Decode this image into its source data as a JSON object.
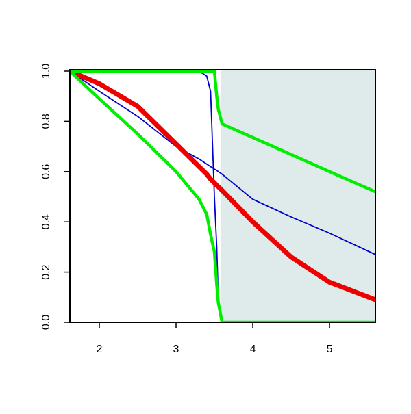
{
  "chart_data": {
    "type": "line",
    "x": [
      1.616,
      2,
      2.5,
      3,
      3.3,
      3.4,
      3.45,
      3.5,
      3.53,
      3.55,
      3.6,
      4,
      4.5,
      5,
      5.598
    ],
    "xlim": [
      1.616,
      5.598
    ],
    "ylim": [
      0,
      1
    ],
    "xticks": [
      2,
      3,
      4,
      5
    ],
    "yticks": [
      {
        "value": 0,
        "label": "0.0"
      },
      {
        "value": 0.2,
        "label": "0.2"
      },
      {
        "value": 0.4,
        "label": "0.4"
      },
      {
        "value": 0.6,
        "label": "0.6"
      },
      {
        "value": 0.8,
        "label": "0.8"
      },
      {
        "value": 1,
        "label": "1.0"
      }
    ],
    "shaded_region": {
      "x": [
        3.58,
        5.598
      ],
      "color": "#dfebea"
    },
    "series": [
      {
        "color": "#0000cc",
        "line_width": 1.8,
        "values": [
          1,
          0.92,
          0.82,
          0.7,
          0.65,
          0.63,
          0.62,
          0.61,
          0.605,
          0.6,
          0.59,
          0.49,
          0.42,
          0.355,
          0.27
        ]
      },
      {
        "color": "#0000cc",
        "line_width": 1.8,
        "values": [
          1,
          1,
          1,
          1,
          1,
          0.98,
          0.92,
          0.5,
          0.3,
          0.1,
          0,
          0,
          0,
          0,
          0
        ]
      },
      {
        "color": "#ee0000",
        "line_width": 7,
        "values": [
          1,
          0.95,
          0.86,
          0.71,
          0.62,
          0.59,
          0.57,
          0.555,
          0.545,
          0.54,
          0.525,
          0.4,
          0.26,
          0.16,
          0.09
        ]
      },
      {
        "color": "#00ee00",
        "line_width": 4.5,
        "values": [
          1,
          1,
          1,
          1,
          1,
          1,
          1,
          1,
          0.9,
          0.85,
          0.79,
          0.736,
          0.668,
          0.6,
          0.52
        ]
      },
      {
        "color": "#00ee00",
        "line_width": 4.5,
        "values": [
          1,
          0.89,
          0.75,
          0.6,
          0.49,
          0.43,
          0.35,
          0.28,
          0.15,
          0.08,
          0,
          0,
          0,
          0,
          0
        ]
      }
    ]
  }
}
